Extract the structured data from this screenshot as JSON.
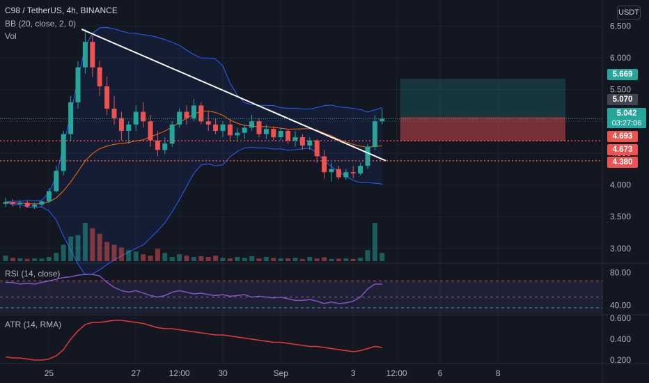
{
  "header": {
    "symbol_line": "C98 / TetherUS, 4h, BINANCE",
    "bb_legend": "BB (20, close, 2, 0)",
    "vol_legend": "Vol",
    "rsi_legend": "RSI (14, close)",
    "atr_legend": "ATR (14, RMA)",
    "currency": "USDT"
  },
  "price_tags": {
    "target": "5.669",
    "entry": "5.070",
    "current": "5.042",
    "countdown": "03:27:06",
    "stop1": "4.693",
    "stop2": "4.673",
    "stop3": "4.380"
  },
  "colors": {
    "bg": "#131722",
    "up": "#26a69a",
    "down": "#ef5350",
    "grid": "#1e222d",
    "bb": "#2962ff",
    "basis": "#ff6d00",
    "trend": "#ffffff",
    "rsi": "#7e57c2",
    "atr": "#e53935",
    "target_zone": "#26a69a",
    "stop_zone": "#ef5350"
  },
  "chart_data": [
    {
      "type": "candlestick",
      "title": "C98 / TetherUS, 4h, BINANCE",
      "y_ticks": [
        "6.500",
        "6.000",
        "5.500",
        "5.000",
        "4.500",
        "4.000",
        "3.500",
        "3.000"
      ],
      "y_tick_values": [
        6.5,
        6.0,
        5.5,
        5.0,
        4.5,
        4.0,
        3.5,
        3.0
      ],
      "ylim": [
        2.8,
        6.8
      ],
      "x_ticks": [
        "25",
        "27",
        "12:00",
        "30",
        "Sep",
        "3",
        "12:00",
        "6",
        "8"
      ],
      "x_tick_index": [
        6,
        18,
        24,
        30,
        38,
        48,
        54,
        60,
        68
      ],
      "ohlc": [
        [
          3.7,
          3.8,
          3.65,
          3.73
        ],
        [
          3.73,
          3.78,
          3.66,
          3.7
        ],
        [
          3.7,
          3.76,
          3.63,
          3.72
        ],
        [
          3.72,
          3.75,
          3.64,
          3.66
        ],
        [
          3.66,
          3.72,
          3.62,
          3.69
        ],
        [
          3.69,
          3.75,
          3.66,
          3.74
        ],
        [
          3.74,
          3.95,
          3.72,
          3.9
        ],
        [
          3.9,
          4.3,
          3.88,
          4.22
        ],
        [
          4.22,
          4.85,
          4.15,
          4.8
        ],
        [
          4.8,
          5.4,
          4.7,
          5.3
        ],
        [
          5.3,
          5.95,
          5.2,
          5.85
        ],
        [
          5.85,
          6.45,
          5.75,
          6.25
        ],
        [
          6.25,
          6.35,
          5.7,
          5.85
        ],
        [
          5.85,
          5.95,
          5.4,
          5.55
        ],
        [
          5.55,
          5.7,
          5.1,
          5.2
        ],
        [
          5.2,
          5.4,
          4.95,
          5.05
        ],
        [
          5.05,
          5.15,
          4.7,
          4.85
        ],
        [
          4.85,
          5.0,
          4.65,
          4.95
        ],
        [
          4.95,
          5.25,
          4.85,
          5.15
        ],
        [
          5.15,
          5.3,
          4.9,
          5.0
        ],
        [
          5.0,
          5.1,
          4.6,
          4.7
        ],
        [
          4.7,
          4.85,
          4.45,
          4.55
        ],
        [
          4.55,
          4.75,
          4.48,
          4.65
        ],
        [
          4.65,
          5.0,
          4.6,
          4.95
        ],
        [
          4.95,
          5.2,
          4.9,
          5.15
        ],
        [
          5.15,
          5.25,
          4.95,
          5.05
        ],
        [
          5.05,
          5.35,
          5.0,
          5.25
        ],
        [
          5.25,
          5.3,
          4.95,
          5.0
        ],
        [
          5.0,
          5.15,
          4.85,
          4.95
        ],
        [
          4.95,
          5.05,
          4.8,
          4.85
        ],
        [
          4.85,
          5.0,
          4.75,
          4.95
        ],
        [
          4.95,
          5.05,
          4.7,
          4.78
        ],
        [
          4.78,
          4.9,
          4.68,
          4.82
        ],
        [
          4.82,
          4.95,
          4.72,
          4.9
        ],
        [
          4.9,
          5.1,
          4.85,
          5.0
        ],
        [
          5.0,
          5.05,
          4.75,
          4.8
        ],
        [
          4.8,
          4.95,
          4.72,
          4.88
        ],
        [
          4.88,
          4.92,
          4.7,
          4.75
        ],
        [
          4.75,
          4.9,
          4.7,
          4.85
        ],
        [
          4.85,
          4.88,
          4.65,
          4.7
        ],
        [
          4.7,
          4.85,
          4.6,
          4.75
        ],
        [
          4.75,
          4.8,
          4.55,
          4.62
        ],
        [
          4.62,
          4.75,
          4.55,
          4.7
        ],
        [
          4.7,
          4.72,
          4.35,
          4.45
        ],
        [
          4.45,
          4.55,
          4.1,
          4.2
        ],
        [
          4.2,
          4.35,
          4.05,
          4.25
        ],
        [
          4.25,
          4.3,
          4.08,
          4.12
        ],
        [
          4.12,
          4.25,
          4.08,
          4.2
        ],
        [
          4.2,
          4.3,
          4.1,
          4.18
        ],
        [
          4.18,
          4.35,
          4.15,
          4.3
        ],
        [
          4.3,
          4.65,
          4.25,
          4.6
        ],
        [
          4.6,
          5.1,
          4.55,
          5.0
        ],
        [
          5.0,
          5.2,
          4.95,
          5.04
        ]
      ]
    },
    {
      "type": "bar",
      "name": "Vol",
      "values": [
        20,
        12,
        10,
        8,
        10,
        9,
        15,
        30,
        60,
        90,
        95,
        140,
        120,
        100,
        70,
        60,
        50,
        40,
        35,
        25,
        20,
        45,
        30,
        15,
        25,
        20,
        15,
        18,
        15,
        20,
        12,
        10,
        15,
        12,
        18,
        10,
        15,
        12,
        10,
        10,
        12,
        8,
        15,
        10,
        14,
        8,
        9,
        10,
        8,
        12,
        40,
        140,
        30
      ]
    },
    {
      "type": "line",
      "name": "RSI",
      "yticks": [
        "80.00",
        "40.00"
      ],
      "ylim": [
        30,
        90
      ],
      "values": [
        68,
        68,
        66,
        67,
        66,
        68,
        70,
        72,
        74,
        75,
        77,
        78,
        78,
        76,
        68,
        62,
        58,
        56,
        58,
        55,
        52,
        50,
        52,
        56,
        58,
        56,
        54,
        55,
        53,
        52,
        53,
        51,
        52,
        53,
        50,
        51,
        50,
        49,
        50,
        48,
        46,
        46,
        47,
        45,
        42,
        44,
        42,
        43,
        45,
        50,
        60,
        66,
        66
      ]
    },
    {
      "type": "line",
      "name": "ATR",
      "yticks": [
        "0.600",
        "0.400",
        "0.200"
      ],
      "ylim": [
        0.18,
        0.62
      ],
      "values": [
        0.23,
        0.22,
        0.22,
        0.21,
        0.2,
        0.2,
        0.21,
        0.24,
        0.3,
        0.4,
        0.48,
        0.54,
        0.56,
        0.56,
        0.57,
        0.58,
        0.58,
        0.57,
        0.56,
        0.55,
        0.53,
        0.51,
        0.5,
        0.5,
        0.49,
        0.48,
        0.47,
        0.46,
        0.45,
        0.44,
        0.44,
        0.43,
        0.42,
        0.41,
        0.4,
        0.39,
        0.38,
        0.37,
        0.37,
        0.36,
        0.35,
        0.34,
        0.33,
        0.33,
        0.32,
        0.31,
        0.3,
        0.29,
        0.28,
        0.29,
        0.31,
        0.33,
        0.32
      ]
    }
  ]
}
